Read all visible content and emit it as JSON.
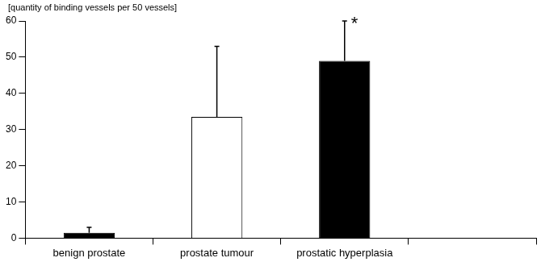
{
  "chart_data": {
    "type": "bar",
    "y_label": "[quantity of binding vessels per 50 vessels]",
    "categories": [
      "benign prostate",
      "prostate tumour",
      "prostatic hyperplasia",
      null
    ],
    "values": [
      1.5,
      33.5,
      49,
      null
    ],
    "errors": [
      1.5,
      19.5,
      11,
      null
    ],
    "colors": [
      "#000000",
      "#ffffff",
      "#000000",
      "#000000"
    ],
    "annotations": [
      {
        "index": 2,
        "text": "*"
      }
    ],
    "ylim": [
      0,
      60
    ],
    "yticks": [
      0,
      10,
      20,
      30,
      40,
      50,
      60
    ],
    "grid": false
  }
}
